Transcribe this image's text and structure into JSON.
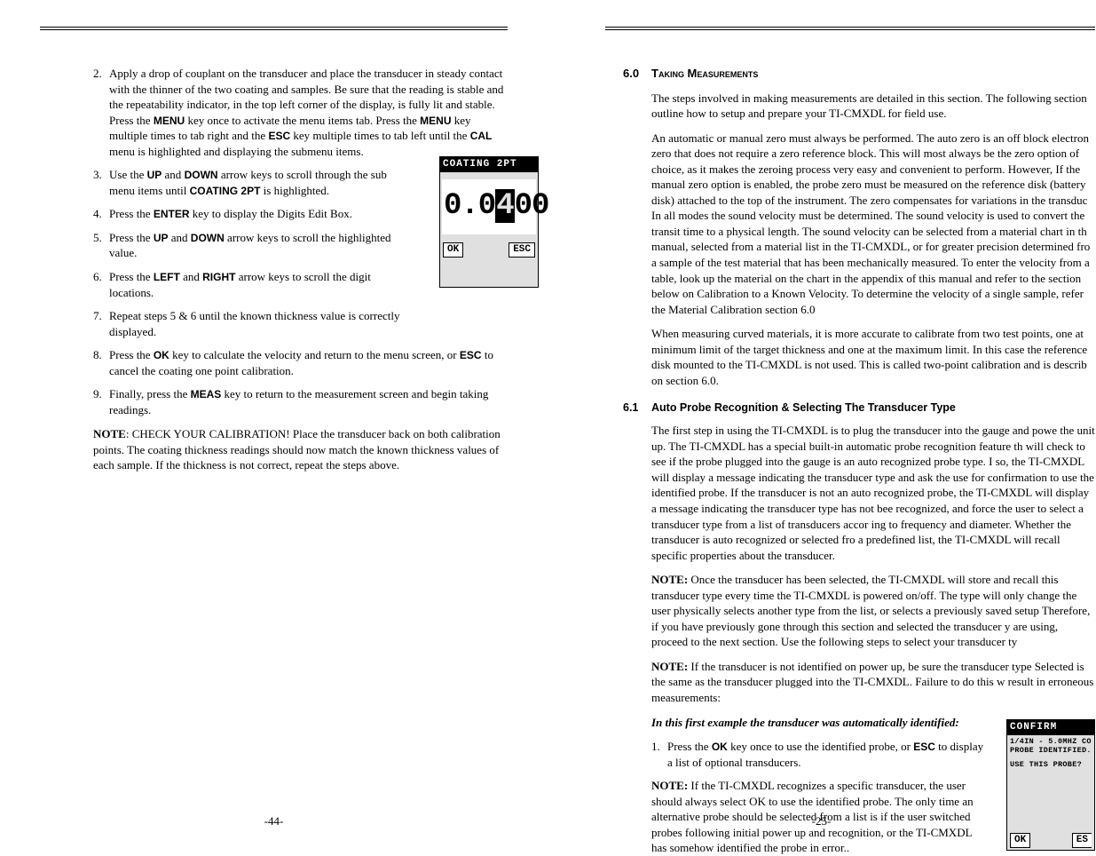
{
  "left": {
    "steps": [
      {
        "n": "2.",
        "txt": "Apply a drop of couplant on the transducer and place the transducer in steady contact with the thinner of the two coating and samples. Be sure that the reading is stable and the repeatability indicator, in the top left corner of the display, is fully lit and stable. Press the <b>MENU</b> key once to activate the menu items tab. Press the <b>MENU</b> key multiple times to tab right and the <b>ESC</b> key multiple times to tab left until the <b>CAL</b> menu is highlighted and displaying the submenu items."
      },
      {
        "n": "3.",
        "txt": "Use the <b>UP</b> and <b>DOWN</b> arrow keys to scroll through the sub menu items until <b>COATING 2PT</b> is highlighted.",
        "wrap": true
      },
      {
        "n": "4.",
        "txt": "Press the <b>ENTER</b> key to display the Digits Edit Box.",
        "wrap": true
      },
      {
        "n": "5.",
        "txt": "Press the <b>UP</b> and <b>DOWN</b> arrow keys to scroll the highlighted value.",
        "wrap": true
      },
      {
        "n": "6.",
        "txt": "Press the <b>LEFT</b> and <b>RIGHT</b> arrow keys to scroll the digit locations.",
        "wrap": true
      },
      {
        "n": "7.",
        "txt": "Repeat steps 5 & 6 until the known thickness value is correctly displayed.",
        "wrap": true
      },
      {
        "n": "8.",
        "txt": "Press the <b>OK</b> key to calculate the velocity and return to the menu screen, or <b>ESC</b> to cancel the coating one point calibration."
      },
      {
        "n": "9.",
        "txt": "Finally, press the <b>MEAS</b> key to return to the measurement screen and begin taking readings."
      }
    ],
    "note": "<sb>NOTE</sb>: CHECK YOUR CALIBRATION! Place the transducer back on both calibration points. The coating thickness readings should now match the known thickness values of each sample. If the thickness is not correct, repeat the steps above.",
    "pagenum": "-44-",
    "lcd": {
      "title": "COATING 2PT",
      "digits_pre": "0.0",
      "digits_inv": "4",
      "digits_post": "00",
      "ok": "OK",
      "esc": "ESC"
    }
  },
  "right": {
    "sec_num": "6.0",
    "sec_title": "Taking Measurements",
    "paras": [
      "The steps involved in making measurements are detailed in this section. The following section outline how to setup and prepare your TI-CMXDL for field use.",
      "An automatic or manual zero must always be performed. The auto zero is an off block electron zero that does not require a zero reference block. This will most always be the zero option of choice, as it makes the zeroing process very easy and convenient to perform. However, If the manual zero option is enabled, the probe zero must be measured on the reference disk (battery disk) attached to the top of the instrument. The zero compensates for variations in the transduc In all modes the sound velocity must be determined. The sound velocity is used to convert the transit time to a physical length. The sound velocity can be selected from a material chart in th manual, selected from a material list in the TI-CMXDL, or for greater precision determined fro a sample of the test material that has been mechanically measured. To enter the velocity from a table, look up the material on the chart in the appendix of this manual and refer to the section below on Calibration to a Known Velocity. To determine the velocity of a single sample, refer the Material Calibration section  6.0",
      "When measuring curved materials, it is more accurate to calibrate from two test points, one at minimum limit of the target thickness and one at the maximum limit. In this case the reference disk mounted to the TI-CMXDL is not used. This is called two-point calibration and is describ on section 6.0."
    ],
    "sub_num": "6.1",
    "sub_title": "Auto Probe Recognition & Selecting The Transducer Type",
    "sub_paras": [
      "The first step in using the TI-CMXDL is to plug the transducer into the gauge and powe the unit up. The TI-CMXDL has a special built-in automatic probe recognition feature th will check to see if the probe plugged into the gauge is an auto recognized probe type. I so, the TI-CMXDL will display a message indicating the transducer type and ask the use for confirmation to use the identified probe. If the transducer is not an auto recognized probe, the TI-CMXDL will display a message indicating the transducer type has not bee recognized, and force the user to select a transducer type from a list of transducers accor ing to frequency and diameter. Whether the transducer is auto recognized or selected fro a predefined list, the TI-CMXDL will recall specific properties about the transducer.",
      "<sb>NOTE:</sb> Once the transducer has been selected, the TI-CMXDL will store and recall this transducer type every time the TI-CMXDL is powered on/off. The type will only change the user physically selects another type from the list, or selects a previously saved setup Therefore, if you have previously gone through this section and selected the transducer y are using, proceed to the next section. Use the following steps to select your transducer ty",
      "<sb>NOTE:</sb> If the transducer is not identified on power up, be sure the transducer type Selected is the same as the transducer plugged into the TI-CMXDL. Failure to do this w result in erroneous measurements:"
    ],
    "italic_line": "In this first example the transducer was automatically identified:",
    "step1_n": "1.",
    "step1": "Press the <b>OK</b> key once to use the identified probe, or <b>ESC</b> to display a list of optional transducers.",
    "note2": "<sb>NOTE:</sb> If the TI-CMXDL recognizes a specific transducer, the user should always select OK to use the identified probe. The only time an alternative probe should be selected from a list is if the user switched probes following initial power up and recognition, or the TI-CMXDL has somehow identified the probe in error..",
    "pagenum": "-25-",
    "lcd": {
      "title": "CONFIRM",
      "line1": "1/4IN - 5.0MHZ CO",
      "line2": "PROBE IDENTIFIED.",
      "line3": "USE THIS PROBE?",
      "ok": "OK",
      "esc": "ES"
    }
  }
}
